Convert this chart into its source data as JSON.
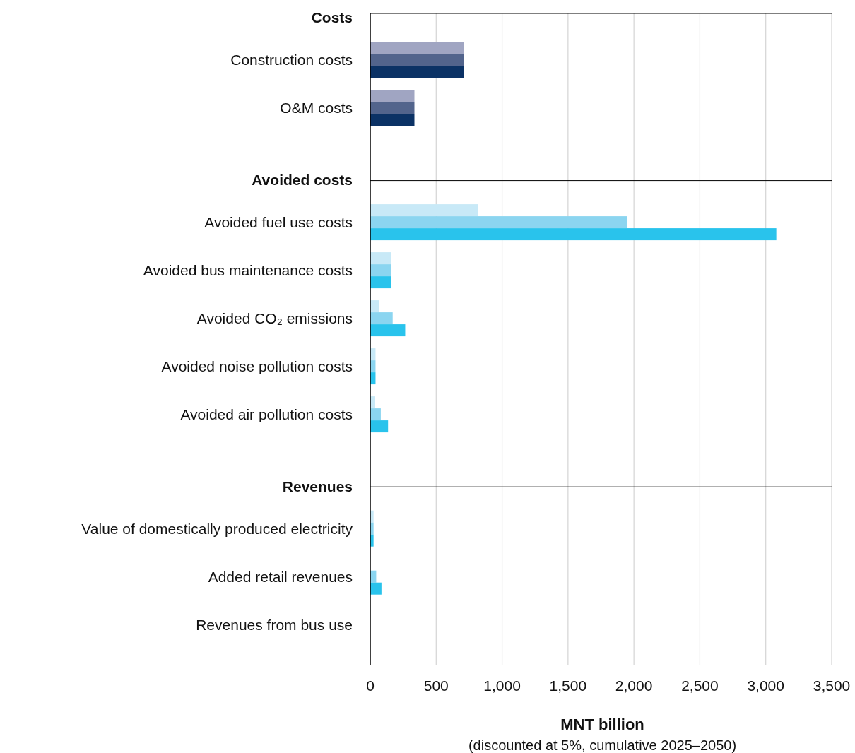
{
  "chart_data": {
    "type": "bar",
    "orientation": "horizontal",
    "categories": [
      "Costs",
      "Construction costs",
      "O&M costs",
      "Avoided costs",
      "Avoided fuel use costs",
      "Avoided bus maintenance costs",
      "Avoided CO₂ emissions",
      "Avoided noise pollution costs",
      "Avoided air pollution costs",
      "Revenues",
      "Value of domestically produced electricity",
      "Added retail revenues",
      "Revenues from bus use"
    ],
    "series": [
      {
        "colors": [
          null,
          "#a0a5c2",
          "#a0a5c2",
          null,
          "#c8e9f7",
          "#c8e9f7",
          "#c8e9f7",
          "#c8e9f7",
          "#c8e9f7",
          null,
          "#c8e9f7",
          "#c8e9f7",
          "#c8e9f7"
        ],
        "values": [
          null,
          710,
          335,
          null,
          820,
          160,
          65,
          40,
          35,
          null,
          25,
          0,
          0
        ]
      },
      {
        "colors": [
          null,
          "#52648c",
          "#52648c",
          null,
          "#8bd5f0",
          "#8bd5f0",
          "#8bd5f0",
          "#8bd5f0",
          "#8bd5f0",
          null,
          "#8bd5f0",
          "#8bd5f0",
          "#8bd5f0"
        ],
        "values": [
          null,
          710,
          335,
          null,
          1950,
          160,
          170,
          40,
          80,
          null,
          25,
          45,
          0
        ]
      },
      {
        "colors": [
          null,
          "#0b3265",
          "#0b3265",
          null,
          "#29c3ec",
          "#29c3ec",
          "#29c3ec",
          "#29c3ec",
          "#29c3ec",
          null,
          "#29c3ec",
          "#29c3ec",
          "#29c3ec"
        ],
        "values": [
          null,
          710,
          335,
          null,
          3080,
          160,
          265,
          40,
          135,
          null,
          25,
          85,
          0
        ]
      }
    ],
    "xlim": [
      0,
      3500
    ],
    "xticks": [
      0,
      500,
      {
        "value": 1000,
        "label": "1,000"
      },
      {
        "value": 1500,
        "label": "1,500"
      },
      {
        "value": 2000,
        "label": "2,000"
      },
      {
        "value": 2500,
        "label": "2,500"
      },
      {
        "value": 3000,
        "label": "3,000"
      },
      {
        "value": 3500,
        "label": "3,500"
      }
    ],
    "grid": "x",
    "ref_lines": [
      {
        "axis": "y",
        "value": "Avoided costs",
        "color": "#000000"
      },
      {
        "axis": "y",
        "value": "Revenues",
        "color": "#000000"
      }
    ],
    "xlabel": "MNT billion",
    "annotations": [
      "(discounted at 5%, cumulative 2025–2050)"
    ]
  }
}
